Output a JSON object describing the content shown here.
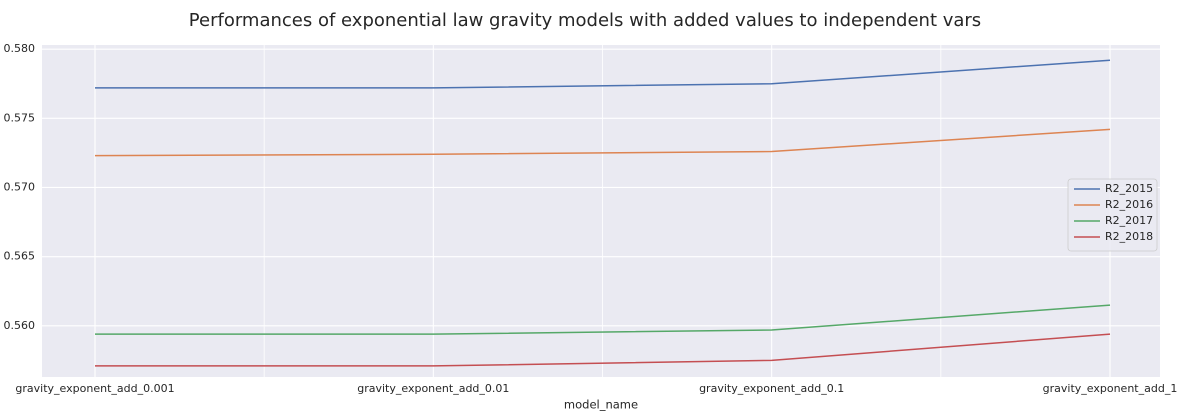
{
  "chart_data": {
    "type": "line",
    "title": "Performances of exponential law gravity models with added values to independent vars",
    "xlabel": "model_name",
    "ylabel": "",
    "categories": [
      "gravity_exponent_add_0.001",
      "gravity_exponent_add_0.01",
      "gravity_exponent_add_0.1",
      "gravity_exponent_add_1"
    ],
    "ylim": [
      0.5563,
      0.5803
    ],
    "yticks": [
      0.56,
      0.565,
      0.57,
      0.575,
      0.58
    ],
    "ytick_labels": [
      "0.560",
      "0.565",
      "0.570",
      "0.575",
      "0.580"
    ],
    "grid": true,
    "legend_position": "center-right",
    "series": [
      {
        "name": "R2_2015",
        "color": "#4c72b0",
        "values": [
          0.5772,
          0.5772,
          0.5775,
          0.5792
        ]
      },
      {
        "name": "R2_2016",
        "color": "#dd8452",
        "values": [
          0.5723,
          0.5724,
          0.5726,
          0.5742
        ]
      },
      {
        "name": "R2_2017",
        "color": "#55a868",
        "values": [
          0.5594,
          0.5594,
          0.5597,
          0.5615
        ]
      },
      {
        "name": "R2_2018",
        "color": "#c44e52",
        "values": [
          0.5571,
          0.5571,
          0.5575,
          0.5594
        ]
      }
    ]
  }
}
